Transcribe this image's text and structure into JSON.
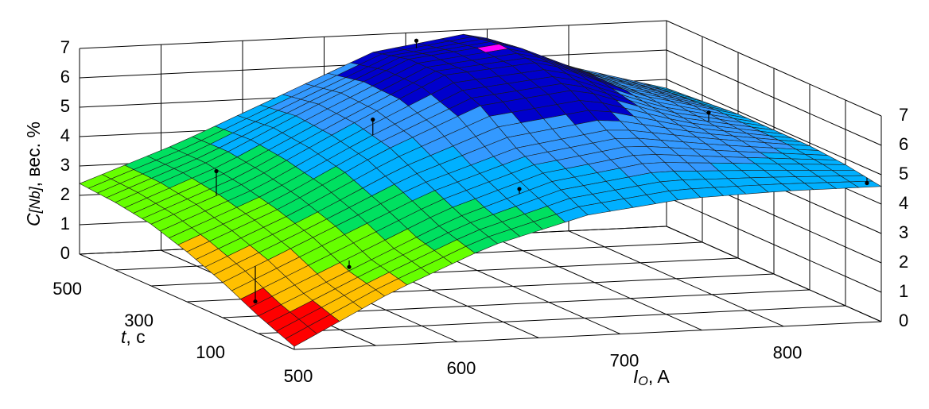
{
  "chart_data": {
    "type": "surface3d",
    "title": "",
    "zlabel": {
      "symbol": "C",
      "subscript": "[Nb]",
      "unit": ", вес. %"
    },
    "xlabel": {
      "symbol": "I",
      "subscript": "O",
      "unit": ", A"
    },
    "ylabel": {
      "symbol": "t",
      "unit": ", с"
    },
    "x_ticks": [
      "500",
      "600",
      "700",
      "800"
    ],
    "y_ticks": [
      "100",
      "300",
      "500"
    ],
    "z_ticks_left": [
      "0",
      "1",
      "2",
      "3",
      "4",
      "5",
      "6",
      "7"
    ],
    "z_ticks_right": [
      "0",
      "1",
      "2",
      "3",
      "4",
      "5",
      "6",
      "7"
    ],
    "xlim": [
      500,
      860
    ],
    "ylim": [
      0,
      600
    ],
    "zlim": [
      0,
      7
    ],
    "grid": true,
    "color_bands": [
      {
        "from": 0,
        "to": 1,
        "color": "#ff0000"
      },
      {
        "from": 1,
        "to": 2,
        "color": "#ffc000"
      },
      {
        "from": 2,
        "to": 3,
        "color": "#66ff00"
      },
      {
        "from": 3,
        "to": 4,
        "color": "#00e060"
      },
      {
        "from": 4,
        "to": 5,
        "color": "#00b0ff"
      },
      {
        "from": 5,
        "to": 6,
        "color": "#3399ff"
      },
      {
        "from": 6,
        "to": 7,
        "color": "#0000cc"
      },
      {
        "from": 7,
        "to": 8,
        "color": "#ff00ff"
      }
    ],
    "surface_samples": {
      "x": [
        500,
        560,
        620,
        680,
        740,
        800,
        860
      ],
      "y": [
        0,
        100,
        200,
        300,
        400,
        500,
        600
      ],
      "z": [
        [
          0.1,
          1.8,
          3.2,
          4.1,
          4.5,
          4.6,
          4.6
        ],
        [
          0.6,
          2.1,
          3.6,
          4.7,
          5.2,
          5.0,
          4.8
        ],
        [
          1.2,
          2.7,
          4.2,
          5.3,
          5.8,
          5.3,
          4.9
        ],
        [
          1.7,
          3.1,
          4.8,
          6.2,
          6.6,
          5.5,
          4.9
        ],
        [
          2.1,
          3.4,
          5.1,
          6.7,
          7.0,
          5.7,
          4.9
        ],
        [
          2.3,
          3.6,
          5.2,
          6.7,
          7.1,
          5.7,
          4.8
        ],
        [
          2.4,
          3.6,
          5.0,
          6.4,
          6.9,
          5.6,
          4.7
        ]
      ]
    },
    "experimental_points": [
      {
        "x": 560,
        "y": 120,
        "z": 2.0
      },
      {
        "x": 540,
        "y": 400,
        "z": 3.8
      },
      {
        "x": 625,
        "y": 350,
        "z": 5.6
      },
      {
        "x": 700,
        "y": 570,
        "z": 6.9
      },
      {
        "x": 660,
        "y": 100,
        "z": 4.5
      },
      {
        "x": 820,
        "y": 300,
        "z": 5.6
      },
      {
        "x": 860,
        "y": 40,
        "z": 4.5
      },
      {
        "x": 520,
        "y": 200,
        "z": 0.5
      }
    ]
  }
}
